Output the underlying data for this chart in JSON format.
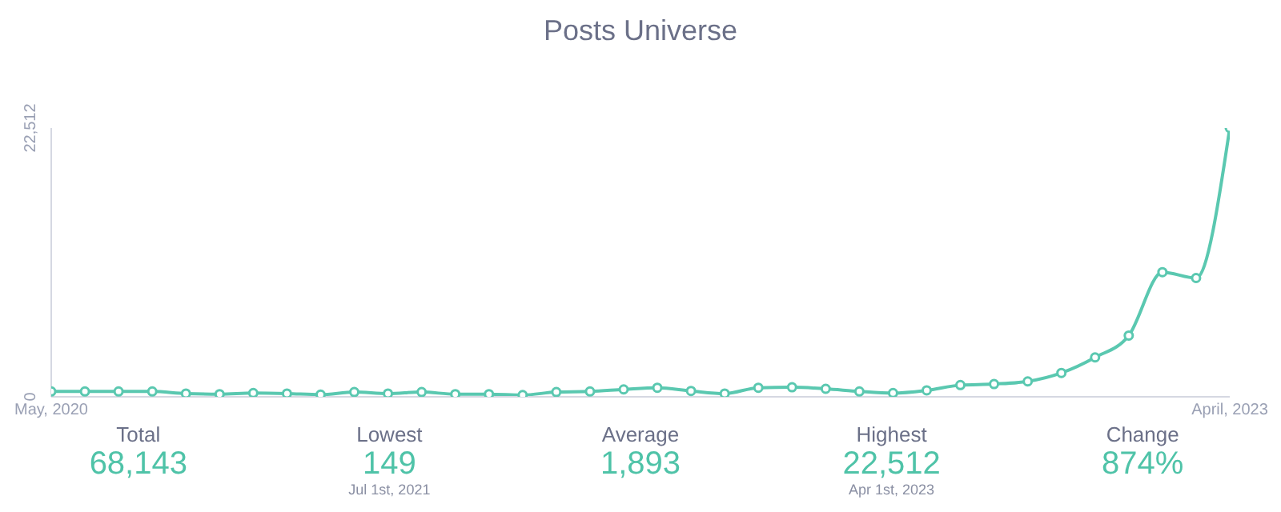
{
  "chart_data": [
    {
      "type": "line",
      "title": "Posts Universe",
      "x": [
        "2020-05",
        "2020-06",
        "2020-07",
        "2020-08",
        "2020-09",
        "2020-10",
        "2020-11",
        "2020-12",
        "2021-01",
        "2021-02",
        "2021-03",
        "2021-04",
        "2021-05",
        "2021-06",
        "2021-07",
        "2021-08",
        "2021-09",
        "2021-10",
        "2021-11",
        "2021-12",
        "2022-01",
        "2022-02",
        "2022-03",
        "2022-04",
        "2022-05",
        "2022-06",
        "2022-07",
        "2022-08",
        "2022-09",
        "2022-10",
        "2022-11",
        "2022-12",
        "2023-01",
        "2023-02",
        "2023-03",
        "2023-04"
      ],
      "series": [
        {
          "color": "#5ac8b0",
          "values": [
            450,
            450,
            450,
            450,
            270,
            220,
            310,
            270,
            180,
            400,
            270,
            400,
            220,
            220,
            149,
            400,
            450,
            620,
            760,
            490,
            270,
            760,
            800,
            670,
            450,
            310,
            540,
            980,
            1070,
            1290,
            2000,
            3300,
            5130,
            10440,
            9950,
            22512
          ]
        }
      ],
      "xlim": [
        "2020-05",
        "2023-04"
      ],
      "xticks": [
        {
          "value": "2020-05",
          "label": "May, 2020"
        },
        {
          "value": "2023-04",
          "label": "April, 2023"
        }
      ],
      "ylim": [
        0,
        22512
      ],
      "yticks": [
        0,
        {
          "value": 22512,
          "label": "22,512"
        }
      ],
      "grid": false,
      "legend": false,
      "marker": "circle",
      "line_style": "solid"
    },
    {
      "type": "other",
      "categories": [
        "Total",
        "Lowest",
        "Average",
        "Highest",
        "Change"
      ],
      "value_labels": [
        "68,143",
        "149",
        "1,893",
        "22,512",
        "874%"
      ],
      "annotations": [
        {
          "text": "Jul 1st, 2021",
          "x": "Lowest"
        },
        {
          "text": "Apr 1st, 2023",
          "x": "Highest"
        }
      ]
    }
  ]
}
